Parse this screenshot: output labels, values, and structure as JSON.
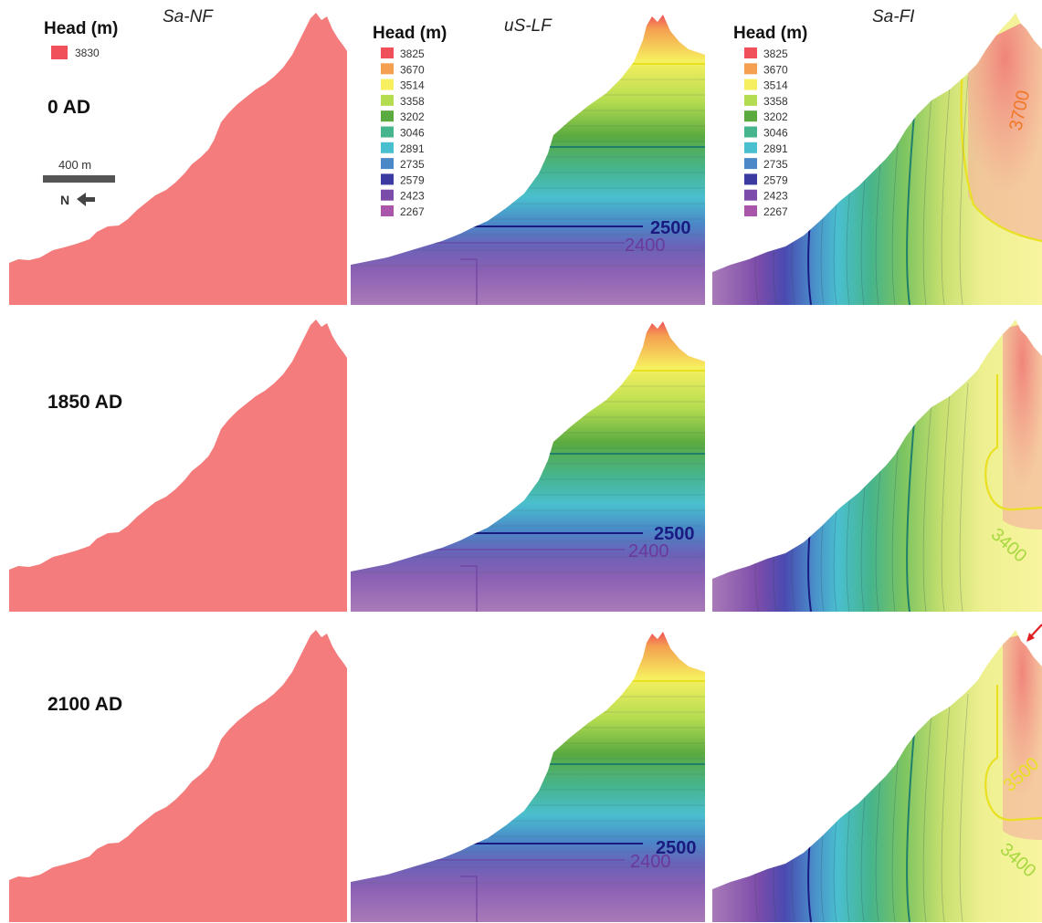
{
  "columns": [
    "Sa-NF",
    "uS-LF",
    "Sa-FI"
  ],
  "rows": [
    "0 AD",
    "1850 AD",
    "2100 AD"
  ],
  "legend_single": {
    "title": "Head (m)",
    "items": [
      {
        "label": "3830",
        "color": "#f0505a"
      }
    ]
  },
  "legend_multi": {
    "title": "Head (m)",
    "items": [
      {
        "label": "3825",
        "color": "#f0505a"
      },
      {
        "label": "3670",
        "color": "#f4a050"
      },
      {
        "label": "3514",
        "color": "#f6f060"
      },
      {
        "label": "3358",
        "color": "#b4dc50"
      },
      {
        "label": "3202",
        "color": "#5aaa40"
      },
      {
        "label": "3046",
        "color": "#46b48c"
      },
      {
        "label": "2891",
        "color": "#4abfcf"
      },
      {
        "label": "2735",
        "color": "#4a88c8"
      },
      {
        "label": "2579",
        "color": "#3a3aa0"
      },
      {
        "label": "2423",
        "color": "#7c4caa"
      },
      {
        "label": "2267",
        "color": "#a855aa"
      }
    ]
  },
  "scale_bar": {
    "label": "400 m",
    "north_label": "N"
  },
  "contour_labels": {
    "lf_upper": "2500",
    "lf_lower": "2400",
    "fi_top": "3700",
    "fi_mid": "3400",
    "fi_bottom_a": "3500",
    "fi_bottom_b": "3400"
  },
  "colors": {
    "nf_fill": "#f47c7c",
    "contour_dark": "#1a1a80",
    "contour_teal": "#1f7f6a",
    "contour_yellow": "#e8e020",
    "contour_orange": "#f07828",
    "contour_lime": "#a8d840",
    "arrow_red": "#e02020"
  }
}
